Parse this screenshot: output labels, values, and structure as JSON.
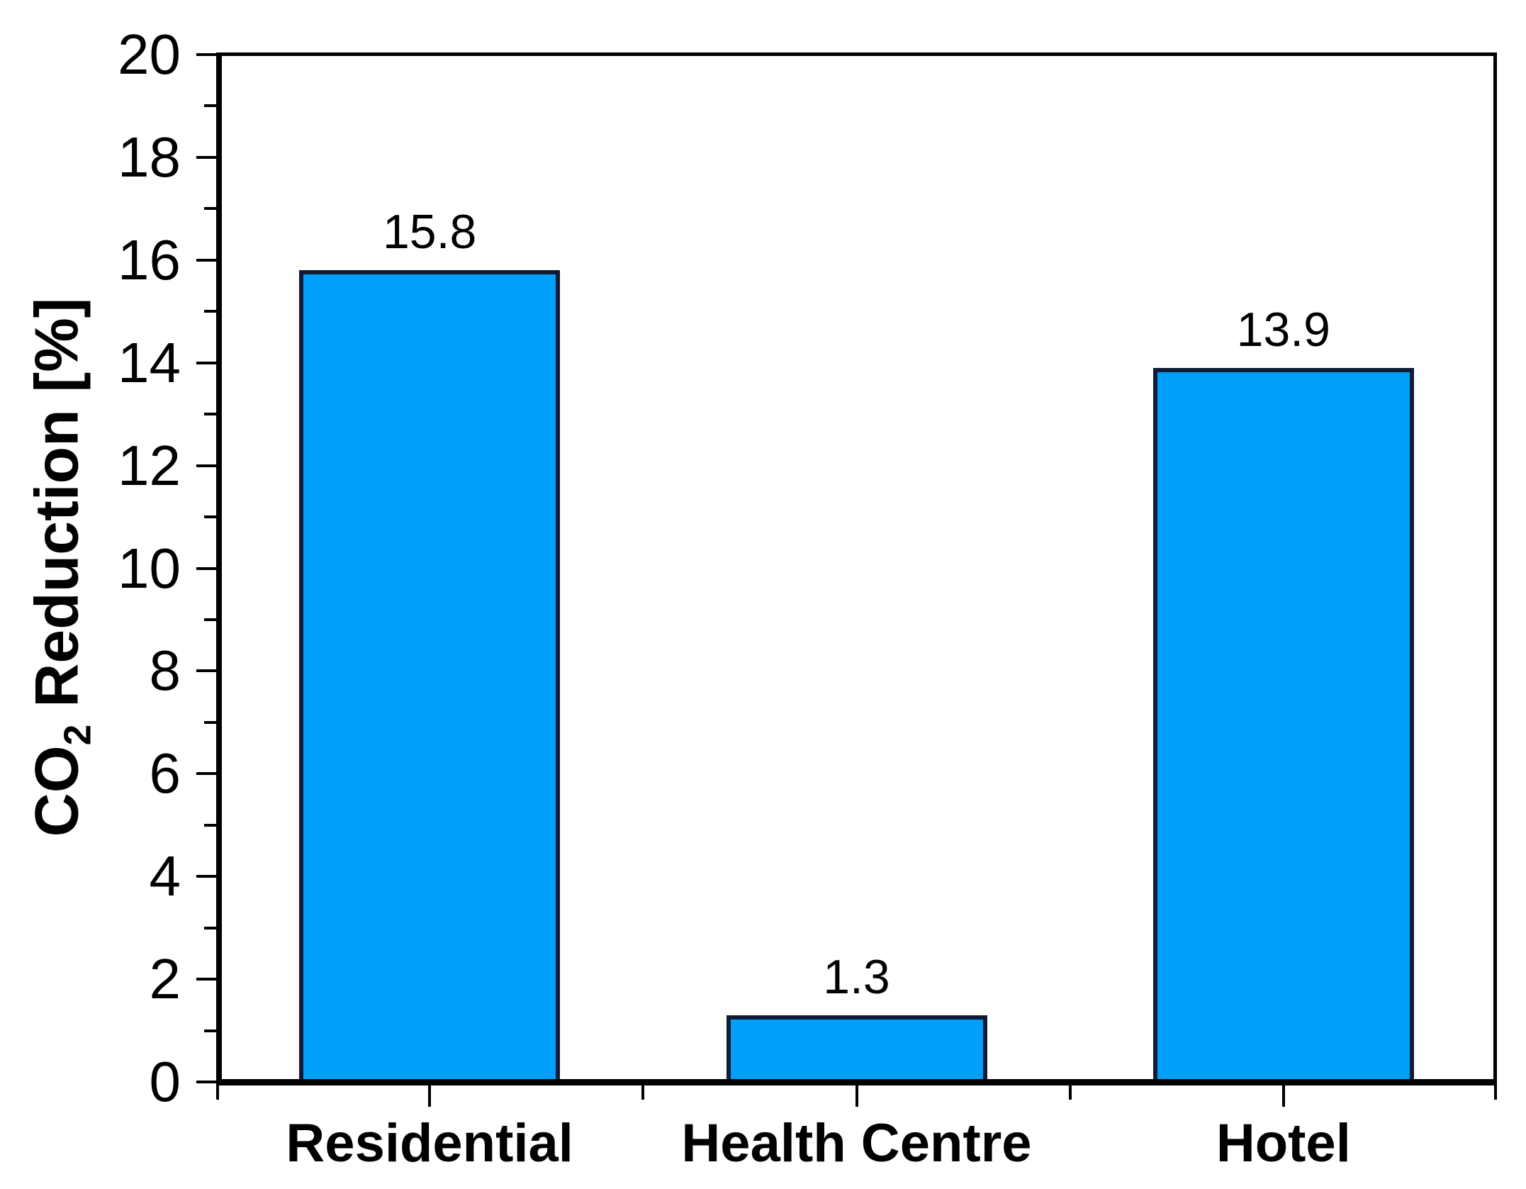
{
  "chart_data": {
    "type": "bar",
    "title": "",
    "categories": [
      "Residential",
      "Health Centre",
      "Hotel"
    ],
    "values": [
      15.8,
      1.3,
      13.9
    ],
    "value_labels": [
      "15.8",
      "1.3",
      "13.9"
    ],
    "series_count": 1,
    "ylabel": "CO2 Reduction [%]",
    "ylabel_prefix": "CO",
    "ylabel_subscript": "2",
    "ylabel_suffix": " Reduction [%]",
    "xlabel": "",
    "ylim": [
      0,
      20
    ],
    "ytick_interval": 2,
    "ytick_minor_interval": 1,
    "yticks": [
      0,
      2,
      4,
      6,
      8,
      10,
      12,
      14,
      16,
      18,
      20
    ],
    "grid": false,
    "legend": "none",
    "bar_fill_color": "#009FFA",
    "bar_border_color": "#0E1B33",
    "axis_color": "#000000",
    "text_color": "#000000",
    "background_color": "#FFFFFF"
  }
}
